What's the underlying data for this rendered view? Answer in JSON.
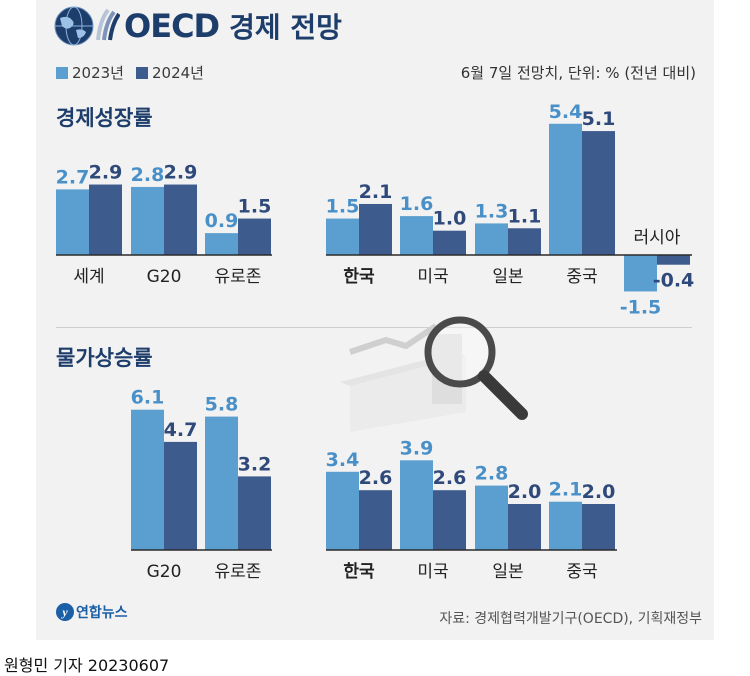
{
  "header": {
    "brand": "OECD",
    "title": "경제 전망",
    "note": "6월 7일 전망치, 단위: % (전년 대비)"
  },
  "legend": [
    {
      "label": "2023년",
      "color": "#5a9fd0"
    },
    {
      "label": "2024년",
      "color": "#3e5b8e"
    }
  ],
  "sections": {
    "growth": "경제성장률",
    "inflation": "물가상승률"
  },
  "chart_data": [
    {
      "type": "bar",
      "title": "경제성장률",
      "categories": [
        "세계",
        "G20",
        "유로존",
        "한국",
        "미국",
        "일본",
        "중국",
        "러시아"
      ],
      "series": [
        {
          "name": "2023년",
          "values": [
            2.7,
            2.8,
            0.9,
            1.5,
            1.6,
            1.3,
            5.4,
            -1.5
          ]
        },
        {
          "name": "2024년",
          "values": [
            2.9,
            2.9,
            1.5,
            2.1,
            1.0,
            1.1,
            5.1,
            -0.4
          ]
        }
      ]
    },
    {
      "type": "bar",
      "title": "물가상승률",
      "categories": [
        "G20",
        "유로존",
        "한국",
        "미국",
        "일본",
        "중국"
      ],
      "series": [
        {
          "name": "2023년",
          "values": [
            6.1,
            5.8,
            3.4,
            3.9,
            2.8,
            2.1
          ]
        },
        {
          "name": "2024년",
          "values": [
            4.7,
            3.2,
            2.6,
            2.6,
            2.0,
            2.0
          ]
        }
      ]
    }
  ],
  "footer": {
    "logo_mark": "y",
    "logo_name": "연합뉴스",
    "source": "자료: 경제협력개발기구(OECD), 기획재정부",
    "byline": "원형민 기자  20230607"
  },
  "colors": {
    "y2023": "#5a9fd0",
    "y2024": "#3e5b8e",
    "label2023": "#4a90c8",
    "label2024": "#2f4a7a",
    "title": "#1d3d6b"
  },
  "icons": [
    "oecd-globe-icon",
    "magnifier-illustration"
  ]
}
